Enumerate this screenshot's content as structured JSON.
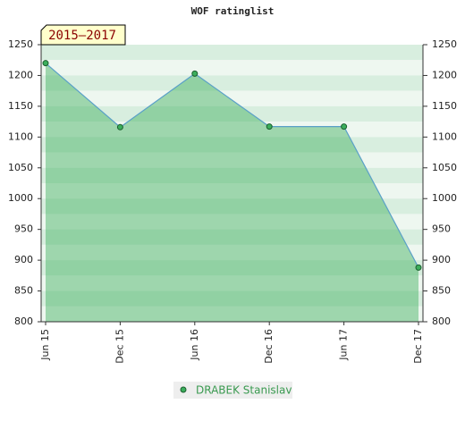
{
  "chart_data": {
    "type": "area",
    "title": "WOF ratinglist",
    "annotation": "2015–2017",
    "categories": [
      "Jun 15",
      "Dec 15",
      "Jun 16",
      "Dec 16",
      "Jun 17",
      "Dec 17"
    ],
    "series": [
      {
        "name": "DRABEK Stanislav",
        "color": "#3cae5c",
        "values": [
          1220,
          1116,
          1203,
          1117,
          1117,
          888
        ]
      }
    ],
    "ylim": [
      800,
      1250
    ],
    "yticks": [
      800,
      850,
      900,
      950,
      1000,
      1050,
      1100,
      1150,
      1200,
      1250
    ],
    "legend": "bottom"
  }
}
